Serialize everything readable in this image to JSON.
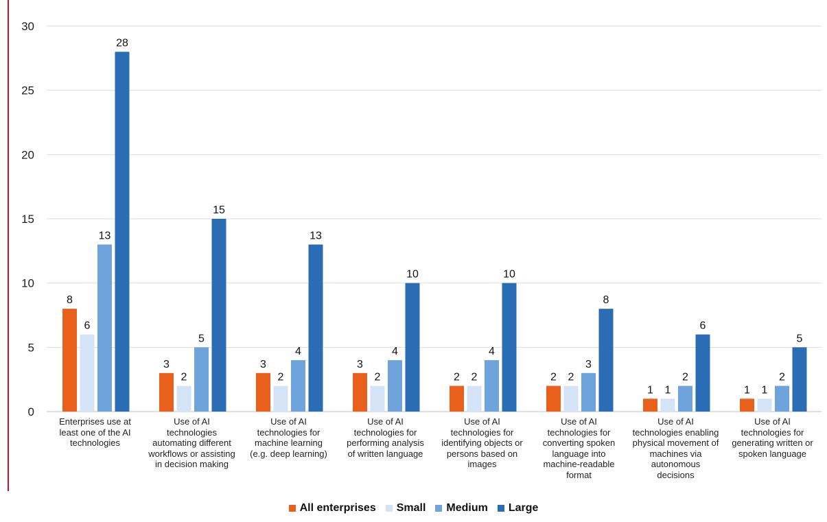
{
  "chart_data": {
    "type": "bar",
    "categories": [
      "Enterprises use at least one of the AI technologies",
      "Use of AI technologies automating different workflows or assisting in decision making",
      "Use of AI technologies for machine learning (e.g. deep learning)",
      "Use of AI technologies for performing analysis of written language",
      "Use of AI technologies for identifying objects or persons based on images",
      "Use of AI technologies for converting spoken language into machine-readable format",
      "Use of AI technologies enabling physical movement of machines via autonomous decisions",
      "Use of AI technologies for generating written or spoken language"
    ],
    "category_lines": [
      [
        "Enterprises use at",
        "least one of the AI",
        "technologies"
      ],
      [
        "Use of AI",
        "technologies",
        "automating different",
        "workflows or assisting",
        "in decision making"
      ],
      [
        "Use of AI",
        "technologies for",
        "machine learning",
        "(e.g. deep learning)"
      ],
      [
        "Use of AI",
        "technologies for",
        "performing analysis",
        "of written language"
      ],
      [
        "Use of AI",
        "technologies for",
        "identifying objects or",
        "persons based on",
        "images"
      ],
      [
        "Use of AI",
        "technologies for",
        "converting spoken",
        "language into",
        "machine-readable",
        "format"
      ],
      [
        "Use of AI",
        "technologies enabling",
        "physical movement of",
        "machines via",
        "autonomous",
        "decisions"
      ],
      [
        "Use of AI",
        "technologies for",
        "generating written or",
        "spoken language"
      ]
    ],
    "series": [
      {
        "name": "All enterprises",
        "color": "#e8601c",
        "values": [
          8,
          3,
          3,
          3,
          2,
          2,
          1,
          1
        ]
      },
      {
        "name": "Small",
        "color": "#d4e3f5",
        "values": [
          6,
          2,
          2,
          2,
          2,
          2,
          1,
          1
        ]
      },
      {
        "name": "Medium",
        "color": "#6fa3dc",
        "values": [
          13,
          5,
          4,
          4,
          4,
          3,
          2,
          2
        ]
      },
      {
        "name": "Large",
        "color": "#2a6db5",
        "values": [
          28,
          15,
          13,
          10,
          10,
          8,
          6,
          5
        ]
      }
    ],
    "ylim": [
      0,
      30
    ],
    "yticks": [
      0,
      5,
      10,
      15,
      20,
      25,
      30
    ],
    "grid": true,
    "legend_position": "bottom",
    "title": "",
    "xlabel": "",
    "ylabel": ""
  }
}
